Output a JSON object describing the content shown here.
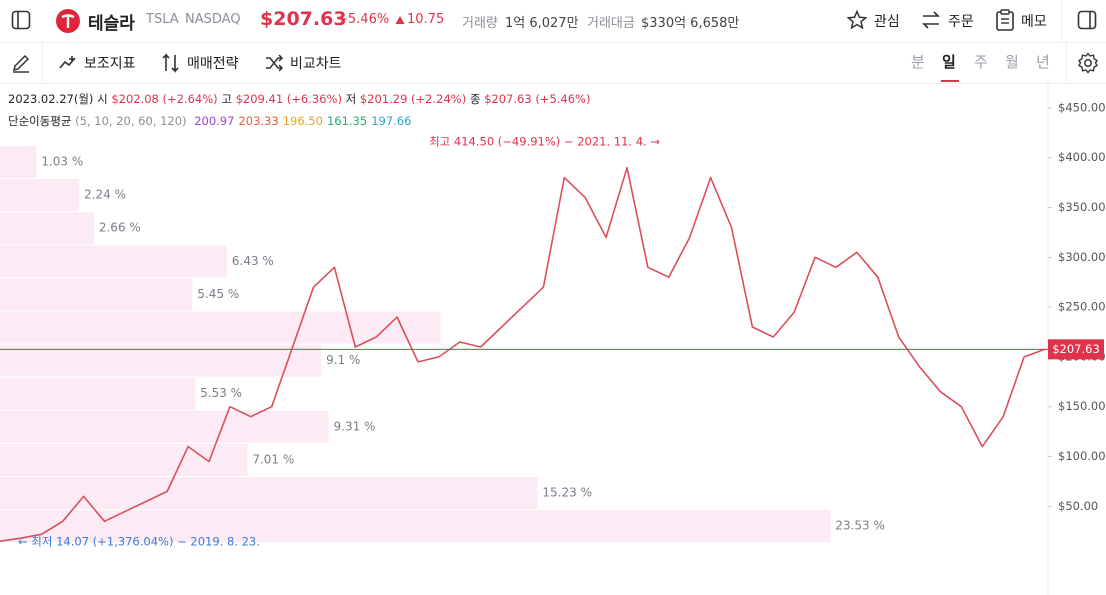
{
  "header": {
    "name": "테슬라",
    "ticker": "TSLA",
    "exchange": "NASDAQ",
    "price": "$207.63",
    "change_pct": "+5.46%",
    "change_abs": "10.75",
    "volume_label": "거래량",
    "volume": "1억 6,027만",
    "amount_label": "거래대금",
    "amount": "$330억 6,658만",
    "actions": [
      "관심",
      "주문",
      "메모"
    ]
  },
  "toolbar": {
    "tools": [
      "보조지표",
      "매매전략",
      "비교차트"
    ],
    "periods": [
      "분",
      "일",
      "주",
      "월",
      "년"
    ],
    "selected_period": 1
  },
  "info": {
    "date": "2023.02.27(월)",
    "open_label": "시",
    "open": "$202.08 (+2.64%)",
    "high_label": "고",
    "high": "$209.41 (+6.36%)",
    "low_label": "저",
    "low": "$201.29 (+2.24%)",
    "close_label": "종",
    "close": "$207.63 (+5.46%)",
    "ma_label": "단순이동평균",
    "ma_periods": "(5, 10, 20, 60, 120)",
    "ma": [
      {
        "value": "200.97",
        "color": "#a040d0"
      },
      {
        "value": "203.33",
        "color": "#e85a3a"
      },
      {
        "value": "196.50",
        "color": "#e8a317"
      },
      {
        "value": "161.35",
        "color": "#20b06a"
      },
      {
        "value": "197.66",
        "color": "#29a3c7"
      }
    ]
  },
  "chart_data": {
    "type": "line",
    "categories": [
      null,
      null,
      null,
      null,
      null,
      null,
      null,
      null,
      null,
      null,
      null,
      null,
      null,
      null,
      null,
      null,
      null,
      null,
      null,
      null,
      null,
      null,
      null,
      null,
      null,
      null,
      null,
      null,
      null,
      null,
      null,
      null,
      null,
      null,
      null,
      null,
      null,
      null,
      null,
      null,
      null,
      null,
      null,
      null,
      null,
      null,
      null,
      null,
      null,
      null,
      null
    ],
    "values": [
      15,
      18,
      22,
      35,
      60,
      35,
      45,
      55,
      65,
      110,
      95,
      150,
      140,
      150,
      210,
      270,
      290,
      210,
      220,
      240,
      195,
      200,
      215,
      210,
      230,
      250,
      270,
      380,
      360,
      320,
      390,
      290,
      280,
      320,
      380,
      330,
      230,
      220,
      245,
      300,
      290,
      305,
      280,
      220,
      190,
      165,
      150,
      110,
      140,
      200,
      207.63
    ],
    "color": "#d94f5c",
    "ylim": [
      -39,
      474
    ],
    "yticks": [
      {
        "value": 50,
        "label": "$50.00"
      },
      {
        "value": 100,
        "label": "$100.00"
      },
      {
        "value": 150,
        "label": "$150.00"
      },
      {
        "value": 200,
        "label": "$200.00"
      },
      {
        "value": 250,
        "label": "$250.00"
      },
      {
        "value": 300,
        "label": "$300.00"
      },
      {
        "value": 350,
        "label": "$350.00"
      },
      {
        "value": 400,
        "label": "$400.00"
      },
      {
        "value": 450,
        "label": "$450.00"
      }
    ],
    "grid": false,
    "price_line": {
      "value": 207.63,
      "label": "$207.63"
    },
    "annotations": [
      "최고 414.50 (−49.91%) − 2021. 11. 4. →",
      "← 최저 14.07 (+1,376.04%) − 2019. 8. 23."
    ],
    "volume_profile": {
      "values": [
        1.03,
        2.24,
        2.66,
        6.43,
        5.45,
        12.48,
        9.1,
        5.53,
        9.31,
        7.01,
        15.23,
        23.53
      ],
      "value_labels": [
        "1.03 %",
        "2.24 %",
        "2.66 %",
        "6.43 %",
        "5.45 %",
        null,
        "9.1 %",
        "5.53 %",
        "9.31 %",
        "7.01 %",
        "15.23 %",
        "23.53 %"
      ],
      "xlim": [
        0,
        29.7
      ],
      "color": "#fcebf4"
    }
  }
}
